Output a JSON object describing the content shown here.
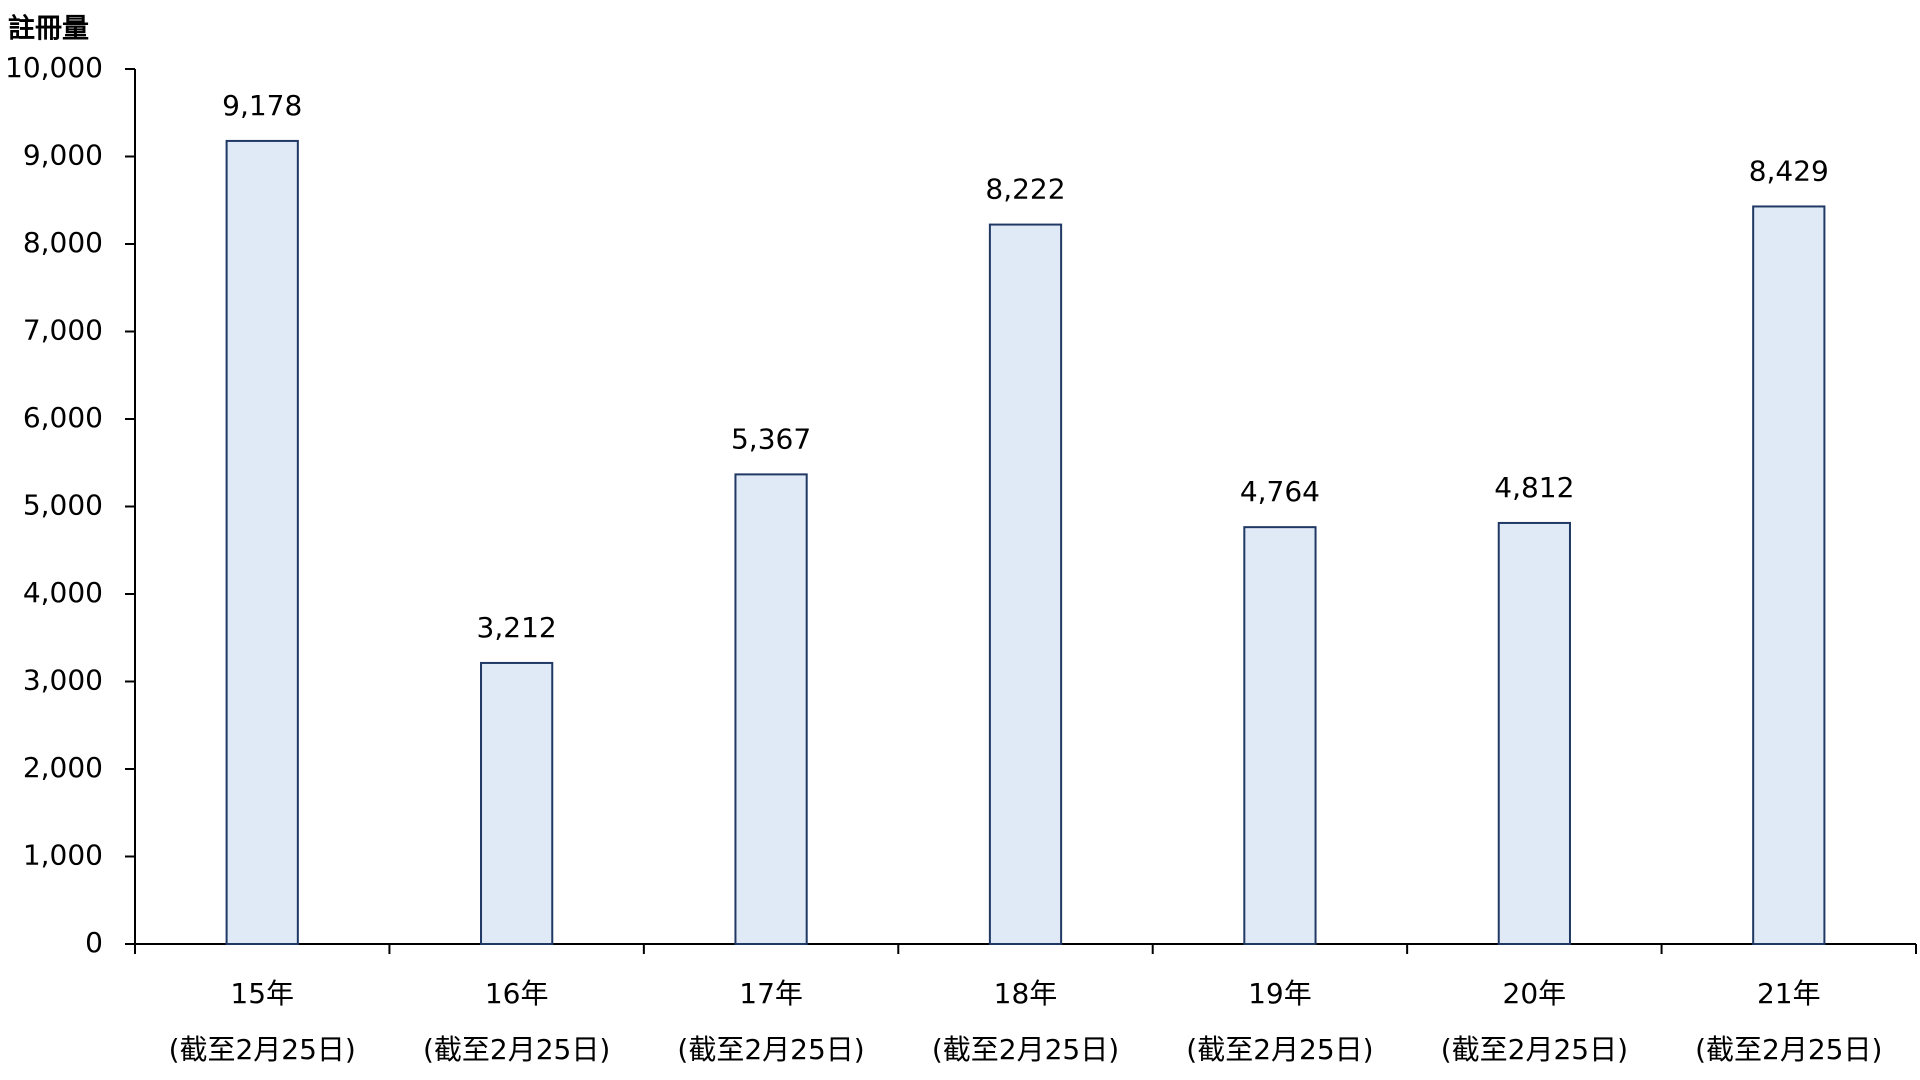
{
  "chart_data": {
    "type": "bar",
    "y_label": "註冊量",
    "categories": [
      [
        "15年",
        "(截至2月25日)"
      ],
      [
        "16年",
        "(截至2月25日)"
      ],
      [
        "17年",
        "(截至2月25日)"
      ],
      [
        "18年",
        "(截至2月25日)"
      ],
      [
        "19年",
        "(截至2月25日)"
      ],
      [
        "20年",
        "(截至2月25日)"
      ],
      [
        "21年",
        "(截至2月25日)"
      ]
    ],
    "values": [
      9178,
      3212,
      5367,
      8222,
      4764,
      4812,
      8429
    ],
    "value_labels": [
      "9,178",
      "3,212",
      "5,367",
      "8,222",
      "4,764",
      "4,812",
      "8,429"
    ],
    "color": "#dfeaf6",
    "edge_color": "#1f3864",
    "ylim": [
      0,
      10000
    ],
    "yticks": [
      0,
      {
        "value": 1000,
        "label": "1,000"
      },
      {
        "value": 2000,
        "label": "2,000"
      },
      {
        "value": 3000,
        "label": "3,000"
      },
      {
        "value": 4000,
        "label": "4,000"
      },
      {
        "value": 5000,
        "label": "5,000"
      },
      {
        "value": 6000,
        "label": "6,000"
      },
      {
        "value": 7000,
        "label": "7,000"
      },
      {
        "value": 8000,
        "label": "8,000"
      },
      {
        "value": 9000,
        "label": "9,000"
      },
      {
        "value": 10000,
        "label": "10,000"
      }
    ],
    "grid": false
  }
}
